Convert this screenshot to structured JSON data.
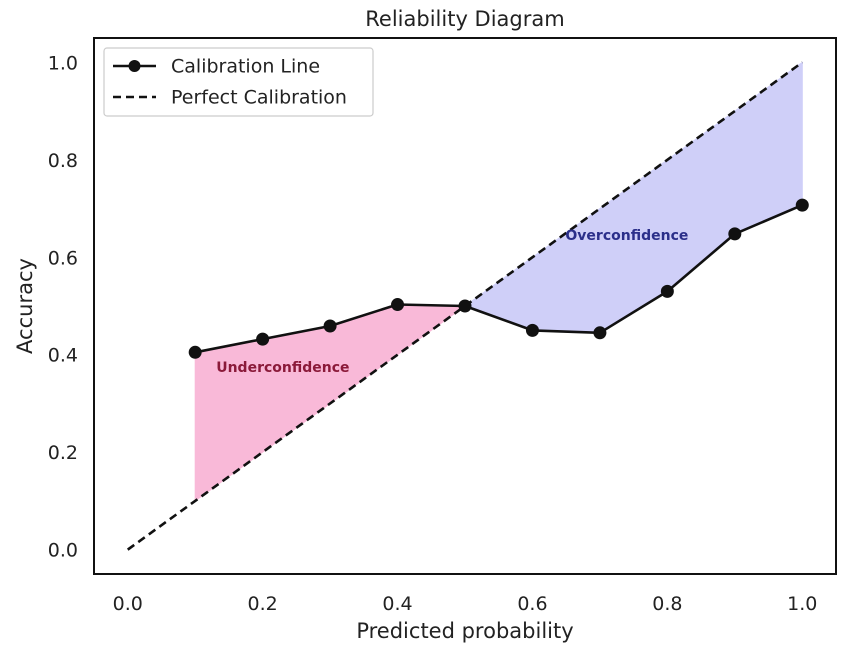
{
  "chart_data": {
    "type": "line",
    "title": "Reliability Diagram",
    "xlabel": "Predicted probability",
    "ylabel": "Accuracy",
    "xlim": [
      -0.05,
      1.05
    ],
    "ylim": [
      -0.05,
      1.05
    ],
    "xticks": [
      0.0,
      0.2,
      0.4,
      0.6,
      0.8,
      1.0
    ],
    "yticks": [
      0.0,
      0.2,
      0.4,
      0.6,
      0.8,
      1.0
    ],
    "xtick_labels": [
      "0.0",
      "0.2",
      "0.4",
      "0.6",
      "0.8",
      "1.0"
    ],
    "ytick_labels": [
      "0.0",
      "0.2",
      "0.4",
      "0.6",
      "0.8",
      "1.0"
    ],
    "grid": false,
    "legend_position": "top-left",
    "series": [
      {
        "name": "Calibration Line",
        "style": "solid-with-markers",
        "color": "#111111",
        "x": [
          0.1,
          0.2,
          0.3,
          0.4,
          0.5,
          0.6,
          0.7,
          0.8,
          0.9,
          1.0
        ],
        "y": [
          0.405,
          0.432,
          0.459,
          0.503,
          0.5,
          0.45,
          0.445,
          0.53,
          0.648,
          0.707
        ]
      },
      {
        "name": "Perfect Calibration",
        "style": "dashed",
        "color": "#111111",
        "x": [
          0.0,
          1.0
        ],
        "y": [
          0.0,
          1.0
        ]
      }
    ],
    "annotations": [
      {
        "text": "Underconfidence",
        "x": 0.23,
        "y": 0.365,
        "color": "#8b1a3a",
        "fill": "#f9b9d8"
      },
      {
        "text": "Overconfidence",
        "x": 0.74,
        "y": 0.635,
        "color": "#2b2f8a",
        "fill": "#cfcff8"
      }
    ]
  }
}
